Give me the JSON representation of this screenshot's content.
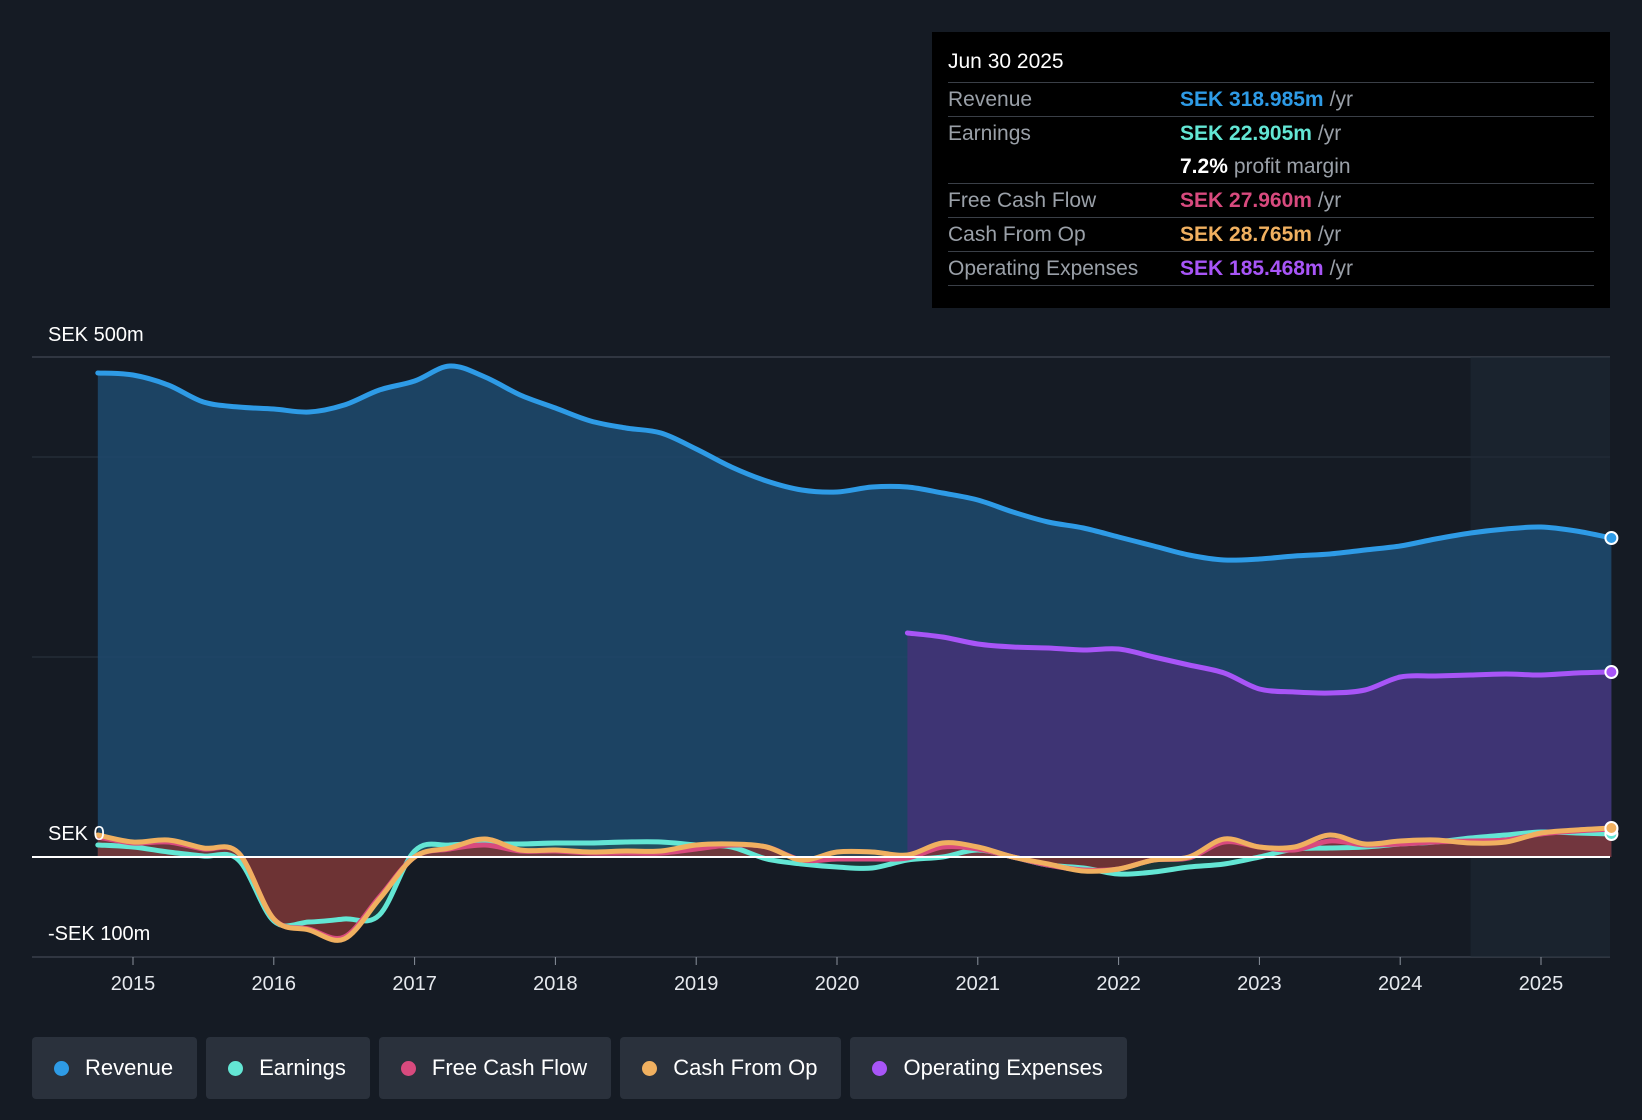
{
  "tooltip": {
    "date": "Jun 30 2025",
    "rows": [
      {
        "name": "Revenue",
        "value": "SEK 318.985m",
        "unit": "/yr",
        "color": "#2e9be6"
      },
      {
        "name": "Earnings",
        "value": "SEK 22.905m",
        "unit": "/yr",
        "color": "#63e6d4"
      },
      {
        "margin_value": "7.2%",
        "margin_label": "profit margin"
      },
      {
        "name": "Free Cash Flow",
        "value": "SEK 27.960m",
        "unit": "/yr",
        "color": "#d84a7e"
      },
      {
        "name": "Cash From Op",
        "value": "SEK 28.765m",
        "unit": "/yr",
        "color": "#f0b060"
      },
      {
        "name": "Operating Expenses",
        "value": "SEK 185.468m",
        "unit": "/yr",
        "color": "#a855f7"
      }
    ]
  },
  "legend": [
    {
      "label": "Revenue",
      "color": "#2e9be6"
    },
    {
      "label": "Earnings",
      "color": "#63e6d4"
    },
    {
      "label": "Free Cash Flow",
      "color": "#d84a7e"
    },
    {
      "label": "Cash From Op",
      "color": "#f0b060"
    },
    {
      "label": "Operating Expenses",
      "color": "#a855f7"
    }
  ],
  "chart_data": {
    "type": "area",
    "currency": "SEK",
    "unit": "m",
    "y_labels": {
      "top": "SEK 500m",
      "zero": "SEK 0",
      "bottom": "-SEK 100m"
    },
    "ylim": [
      -100,
      500
    ],
    "xlim": [
      2014.25,
      2025.5
    ],
    "gridlines": [
      400,
      200
    ],
    "x_ticks": [
      2015,
      2016,
      2017,
      2018,
      2019,
      2020,
      2021,
      2022,
      2023,
      2024,
      2025
    ],
    "forecast_shade_start": 2024.5,
    "series": [
      {
        "name": "Revenue",
        "color": "#2e9be6",
        "x": [
          2014.75,
          2015.0,
          2015.25,
          2015.5,
          2015.75,
          2016.0,
          2016.25,
          2016.5,
          2016.75,
          2017.0,
          2017.25,
          2017.5,
          2017.75,
          2018.0,
          2018.25,
          2018.5,
          2018.75,
          2019.0,
          2019.25,
          2019.5,
          2019.75,
          2020.0,
          2020.25,
          2020.5,
          2020.75,
          2021.0,
          2021.25,
          2021.5,
          2021.75,
          2022.0,
          2022.25,
          2022.5,
          2022.75,
          2023.0,
          2023.25,
          2023.5,
          2023.75,
          2024.0,
          2024.25,
          2024.5,
          2024.75,
          2025.0,
          2025.25,
          2025.5
        ],
        "values": [
          484,
          482,
          472,
          455,
          450,
          448,
          445,
          452,
          467,
          476,
          491,
          480,
          462,
          449,
          436,
          429,
          424,
          408,
          390,
          376,
          367,
          365,
          370,
          370,
          364,
          357,
          345,
          335,
          329,
          320,
          311,
          302,
          297,
          298,
          301,
          303,
          307,
          311,
          318,
          324,
          328,
          330,
          326,
          319
        ]
      },
      {
        "name": "Operating Expenses",
        "color": "#a855f7",
        "x": [
          2020.5,
          2020.75,
          2021.0,
          2021.25,
          2021.5,
          2021.75,
          2022.0,
          2022.25,
          2022.5,
          2022.75,
          2023.0,
          2023.25,
          2023.5,
          2023.75,
          2024.0,
          2024.25,
          2024.5,
          2024.75,
          2025.0,
          2025.25,
          2025.5
        ],
        "values": [
          224,
          220,
          213,
          210,
          209,
          207,
          208,
          200,
          192,
          184,
          168,
          165,
          164,
          167,
          180,
          181,
          182,
          183,
          182,
          184,
          185
        ]
      },
      {
        "name": "Earnings",
        "color": "#63e6d4",
        "x": [
          2014.75,
          2015.0,
          2015.25,
          2015.5,
          2015.75,
          2016.0,
          2016.25,
          2016.5,
          2016.75,
          2017.0,
          2017.25,
          2017.5,
          2017.75,
          2018.0,
          2018.25,
          2018.5,
          2018.75,
          2019.0,
          2019.25,
          2019.5,
          2019.75,
          2020.0,
          2020.25,
          2020.5,
          2020.75,
          2021.0,
          2021.25,
          2021.5,
          2021.75,
          2022.0,
          2022.25,
          2022.5,
          2022.75,
          2023.0,
          2023.25,
          2023.5,
          2023.75,
          2024.0,
          2024.25,
          2024.5,
          2024.75,
          2025.0,
          2025.25,
          2025.5
        ],
        "values": [
          12,
          10,
          5,
          1,
          -3,
          -64,
          -65,
          -62,
          -58,
          6,
          12,
          13,
          13,
          14,
          14,
          15,
          15,
          12,
          10,
          -2,
          -7,
          -10,
          -11,
          -3,
          0,
          7,
          0,
          -8,
          -11,
          -17,
          -15,
          -10,
          -7,
          0,
          8,
          9,
          10,
          13,
          15,
          19,
          22,
          25,
          24,
          23
        ]
      },
      {
        "name": "Free Cash Flow",
        "color": "#d84a7e",
        "x": [
          2014.75,
          2015.0,
          2015.25,
          2015.5,
          2015.75,
          2016.0,
          2016.25,
          2016.5,
          2016.75,
          2017.0,
          2017.25,
          2017.5,
          2017.75,
          2018.0,
          2018.25,
          2018.5,
          2018.75,
          2019.0,
          2019.25,
          2019.5,
          2019.75,
          2020.0,
          2020.25,
          2020.5,
          2020.75,
          2021.0,
          2021.25,
          2021.5,
          2021.75,
          2022.0,
          2022.25,
          2022.5,
          2022.75,
          2023.0,
          2023.25,
          2023.5,
          2023.75,
          2024.0,
          2024.25,
          2024.5,
          2024.75,
          2025.0,
          2025.25,
          2025.5
        ],
        "values": [
          20,
          14,
          15,
          8,
          4,
          -62,
          -72,
          -80,
          -40,
          0,
          8,
          12,
          6,
          6,
          4,
          4,
          4,
          8,
          12,
          10,
          -3,
          -2,
          -2,
          -1,
          10,
          8,
          0,
          -8,
          -13,
          -12,
          -3,
          -1,
          15,
          10,
          7,
          16,
          12,
          13,
          15,
          16,
          17,
          23,
          26,
          28
        ]
      },
      {
        "name": "Cash From Op",
        "color": "#f0b060",
        "x": [
          2014.75,
          2015.0,
          2015.25,
          2015.5,
          2015.75,
          2016.0,
          2016.25,
          2016.5,
          2016.75,
          2017.0,
          2017.25,
          2017.5,
          2017.75,
          2018.0,
          2018.25,
          2018.5,
          2018.75,
          2019.0,
          2019.25,
          2019.5,
          2019.75,
          2020.0,
          2020.25,
          2020.5,
          2020.75,
          2021.0,
          2021.25,
          2021.5,
          2021.75,
          2022.0,
          2022.25,
          2022.5,
          2022.75,
          2023.0,
          2023.25,
          2023.5,
          2023.75,
          2024.0,
          2024.25,
          2024.5,
          2024.75,
          2025.0,
          2025.25,
          2025.5
        ],
        "values": [
          22,
          15,
          17,
          9,
          4,
          -62,
          -73,
          -82,
          -42,
          0,
          9,
          18,
          7,
          7,
          5,
          6,
          6,
          12,
          13,
          10,
          -3,
          5,
          5,
          2,
          14,
          10,
          0,
          -7,
          -14,
          -12,
          -3,
          0,
          18,
          10,
          10,
          22,
          13,
          16,
          17,
          14,
          15,
          24,
          27,
          29
        ]
      }
    ]
  }
}
